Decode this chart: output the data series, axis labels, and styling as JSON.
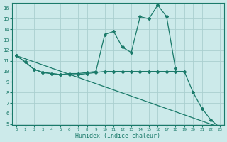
{
  "line1_x": [
    0,
    1,
    2,
    3,
    4,
    5,
    6,
    7,
    8,
    9,
    10,
    11,
    12,
    13,
    14,
    15,
    16,
    17,
    18
  ],
  "line1_y": [
    11.5,
    10.9,
    10.2,
    9.9,
    9.8,
    9.7,
    9.8,
    9.8,
    9.9,
    10.0,
    13.5,
    13.8,
    12.3,
    11.8,
    15.2,
    15.0,
    16.3,
    15.2,
    10.3
  ],
  "line2_x": [
    0,
    1,
    2,
    3,
    4,
    5,
    6,
    7,
    8,
    9,
    10,
    11,
    12,
    13,
    14,
    15,
    16,
    17,
    18,
    19,
    20,
    21,
    22,
    23
  ],
  "line2_y": [
    11.5,
    10.9,
    10.2,
    9.9,
    9.8,
    9.7,
    9.7,
    9.7,
    9.8,
    9.9,
    10.0,
    10.0,
    10.0,
    10.0,
    10.0,
    10.0,
    10.0,
    10.0,
    10.0,
    10.0,
    8.0,
    6.5,
    5.4,
    4.7
  ],
  "line3_x": [
    0,
    23
  ],
  "line3_y": [
    11.5,
    4.7
  ],
  "line_color": "#1a7a6a",
  "bg_color": "#cceaea",
  "grid_color": "#aacfcf",
  "xlabel": "Humidex (Indice chaleur)",
  "xlim": [
    -0.5,
    23.5
  ],
  "ylim": [
    4.9,
    16.5
  ],
  "yticks": [
    5,
    6,
    7,
    8,
    9,
    10,
    11,
    12,
    13,
    14,
    15,
    16
  ],
  "xticks": [
    0,
    1,
    2,
    3,
    4,
    5,
    6,
    7,
    8,
    9,
    10,
    11,
    12,
    13,
    14,
    15,
    16,
    17,
    18,
    19,
    20,
    21,
    22,
    23
  ]
}
